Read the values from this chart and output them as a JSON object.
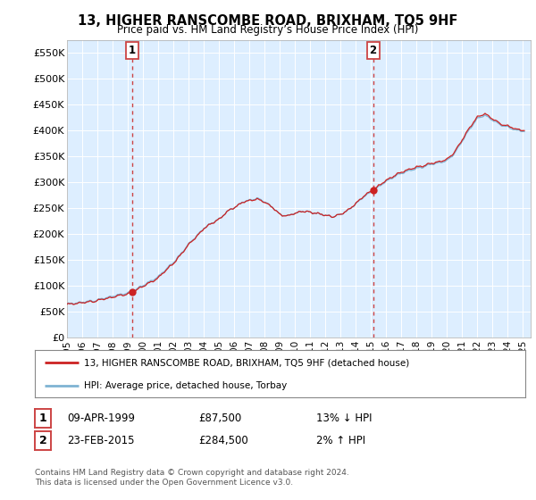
{
  "title": "13, HIGHER RANSCOMBE ROAD, BRIXHAM, TQ5 9HF",
  "subtitle": "Price paid vs. HM Land Registry’s House Price Index (HPI)",
  "ylabel_ticks": [
    "£0",
    "£50K",
    "£100K",
    "£150K",
    "£200K",
    "£250K",
    "£300K",
    "£350K",
    "£400K",
    "£450K",
    "£500K",
    "£550K"
  ],
  "ytick_values": [
    0,
    50000,
    100000,
    150000,
    200000,
    250000,
    300000,
    350000,
    400000,
    450000,
    500000,
    550000
  ],
  "ylim": [
    0,
    575000
  ],
  "xlim_start": 1995.0,
  "xlim_end": 2025.5,
  "vline1_x": 1999.27,
  "vline2_x": 2015.13,
  "sale1_x": 1999.27,
  "sale1_y": 87500,
  "sale2_x": 2015.13,
  "sale2_y": 284500,
  "legend_line1": "13, HIGHER RANSCOMBE ROAD, BRIXHAM, TQ5 9HF (detached house)",
  "legend_line2": "HPI: Average price, detached house, Torbay",
  "table_rows": [
    {
      "num": "1",
      "date": "09-APR-1999",
      "price": "£87,500",
      "hpi": "13% ↓ HPI"
    },
    {
      "num": "2",
      "date": "23-FEB-2015",
      "price": "£284,500",
      "hpi": "2% ↑ HPI"
    }
  ],
  "footer": "Contains HM Land Registry data © Crown copyright and database right 2024.\nThis data is licensed under the Open Government Licence v3.0.",
  "hpi_color": "#7fb3d3",
  "price_color": "#cc2222",
  "vline_color": "#cc4444",
  "plot_bg_color": "#ddeeff",
  "grid_color": "#ffffff",
  "xticks": [
    1995,
    1996,
    1997,
    1998,
    1999,
    2000,
    2001,
    2002,
    2003,
    2004,
    2005,
    2006,
    2007,
    2008,
    2009,
    2010,
    2011,
    2012,
    2013,
    2014,
    2015,
    2016,
    2017,
    2018,
    2019,
    2020,
    2021,
    2022,
    2023,
    2024,
    2025
  ]
}
